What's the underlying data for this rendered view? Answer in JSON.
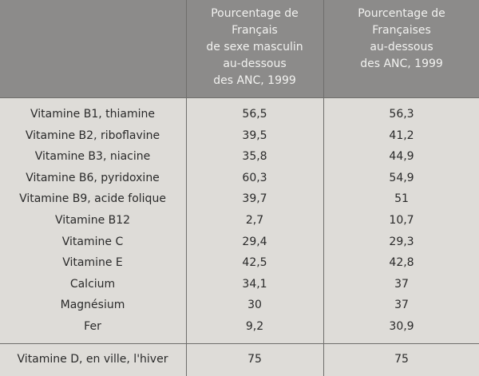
{
  "table": {
    "header": [
      [
        "Pourcentage de",
        "Français",
        "de sexe masculin",
        "au-dessous",
        "des ANC, 1999"
      ],
      [
        "Pourcentage de",
        "Françaises",
        "au-dessous",
        "des ANC, 1999"
      ]
    ],
    "rows": [
      [
        "Vitamine B1, thiamine",
        "56,5",
        "56,3"
      ],
      [
        "Vitamine B2, riboflavine",
        "39,5",
        "41,2"
      ],
      [
        "Vitamine B3, niacine",
        "35,8",
        "44,9"
      ],
      [
        "Vitamine B6, pyridoxine",
        "60,3",
        "54,9"
      ],
      [
        "Vitamine B9, acide folique",
        "39,7",
        "51"
      ],
      [
        "Vitamine B12",
        "2,7",
        "10,7"
      ],
      [
        "Vitamine C",
        "29,4",
        "29,3"
      ],
      [
        "Vitamine E",
        "42,5",
        "42,8"
      ],
      [
        "Calcium",
        "34,1",
        "37"
      ],
      [
        "Magnésium",
        "30",
        "37"
      ],
      [
        "Fer",
        "9,2",
        "30,9"
      ]
    ],
    "last_row": [
      "Vitamine D, en ville, l'hiver",
      "75",
      "75"
    ]
  }
}
